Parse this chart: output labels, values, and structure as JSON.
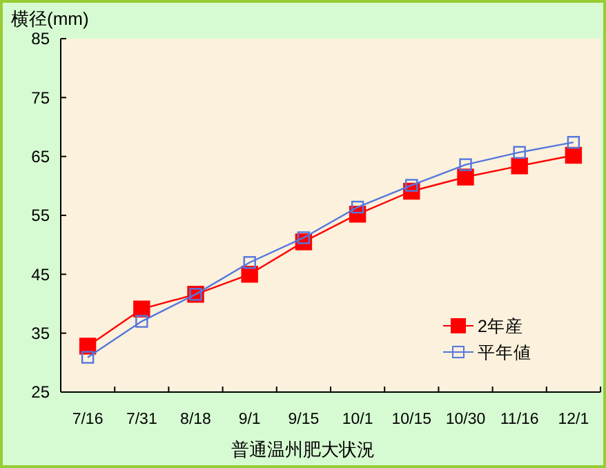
{
  "chart_data": {
    "type": "line",
    "ylabel": "横径(mm)",
    "xlabel": "普通温州肥大状況",
    "categories": [
      "7/16",
      "7/31",
      "8/18",
      "9/1",
      "9/15",
      "10/1",
      "10/15",
      "10/30",
      "11/16",
      "12/1"
    ],
    "series": [
      {
        "name": "2年産",
        "color": "#ff0000",
        "marker": "square",
        "values": [
          32.8,
          39.1,
          41.6,
          45.0,
          50.5,
          55.2,
          59.1,
          61.5,
          63.4,
          65.2
        ]
      },
      {
        "name": "平年値",
        "color": "#5577dd",
        "marker": "square",
        "values": [
          30.9,
          37.0,
          41.6,
          47.0,
          51.2,
          56.4,
          60.1,
          63.6,
          65.7,
          67.4
        ]
      }
    ],
    "ylim": [
      25,
      85
    ],
    "yticks": [
      25,
      35,
      45,
      55,
      65,
      75,
      85
    ],
    "grid": false,
    "legend": "bottom right",
    "line_style": "solid"
  }
}
